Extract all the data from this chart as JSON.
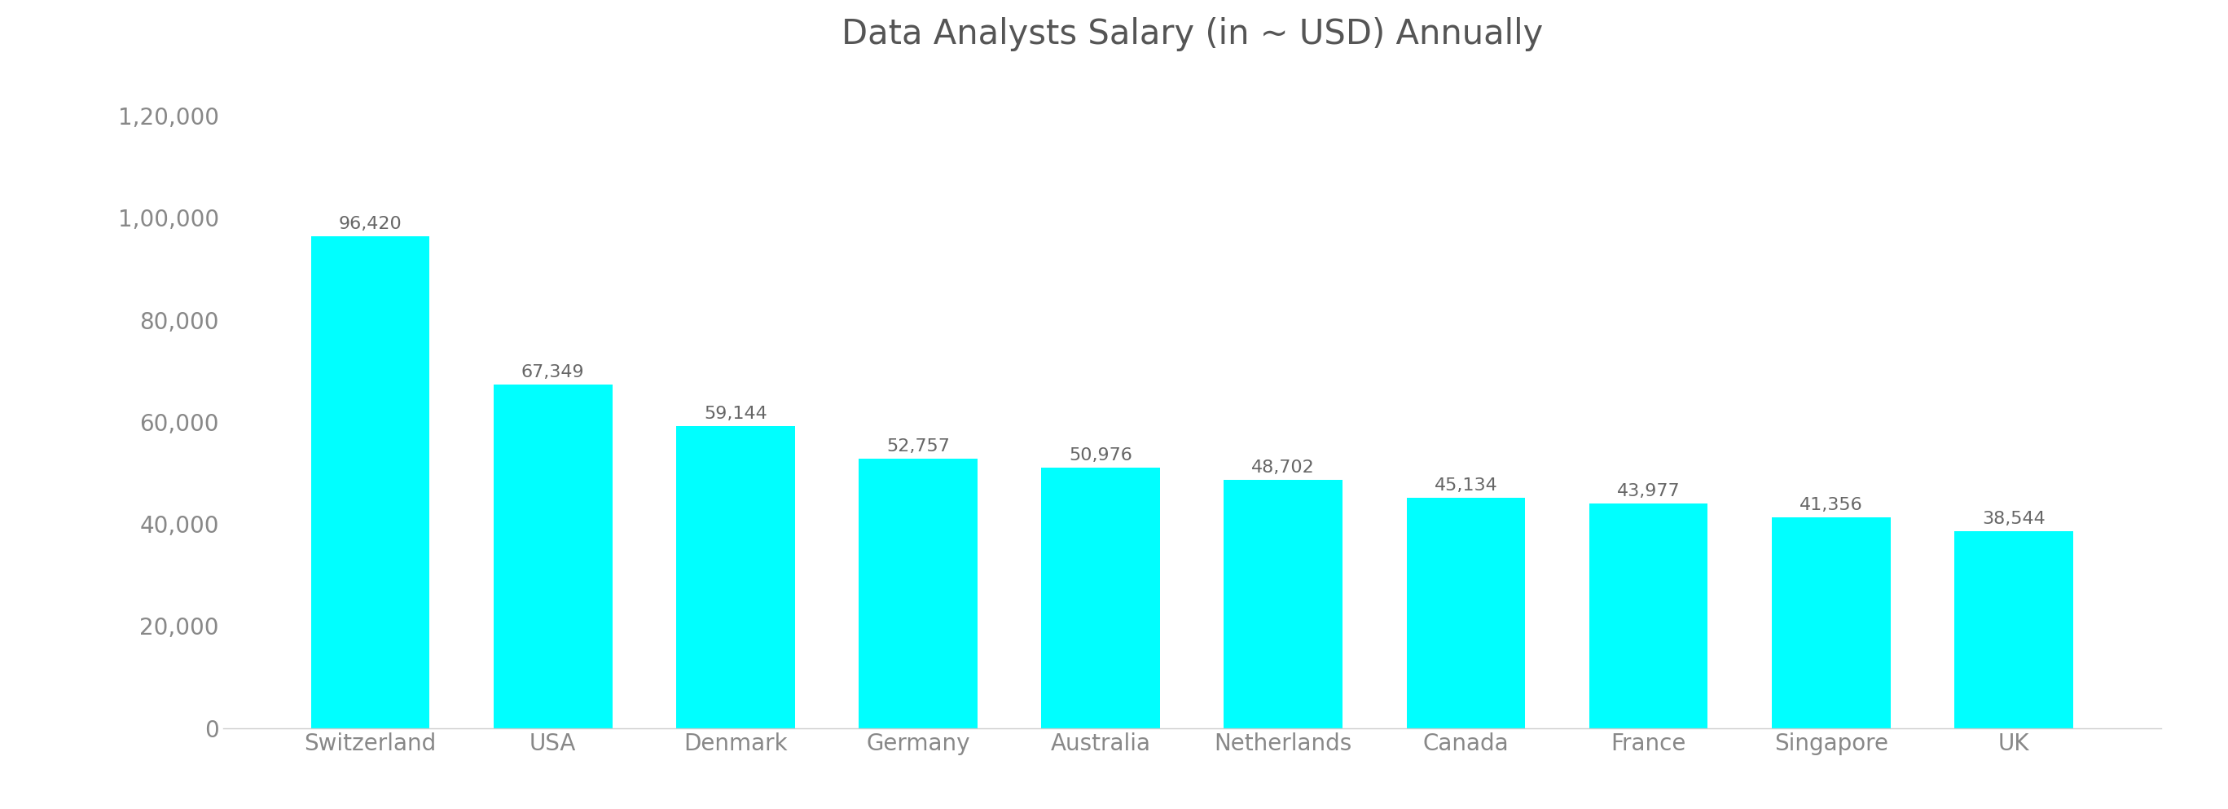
{
  "title": "Data Analysts Salary (in ~ USD) Annually",
  "categories": [
    "Switzerland",
    "USA",
    "Denmark",
    "Germany",
    "Australia",
    "Netherlands",
    "Canada",
    "France",
    "Singapore",
    "UK"
  ],
  "values": [
    96420,
    67349,
    59144,
    52757,
    50976,
    48702,
    45134,
    43977,
    41356,
    38544
  ],
  "bar_color": "#00FFFF",
  "bar_edge_color": "none",
  "background_color": "#FFFFFF",
  "title_color": "#555555",
  "tick_color": "#888888",
  "label_color": "#666666",
  "title_fontsize": 30,
  "tick_fontsize": 20,
  "value_label_fontsize": 16,
  "ylim": [
    0,
    130000
  ],
  "yticks": [
    0,
    20000,
    40000,
    60000,
    80000,
    100000,
    120000
  ]
}
